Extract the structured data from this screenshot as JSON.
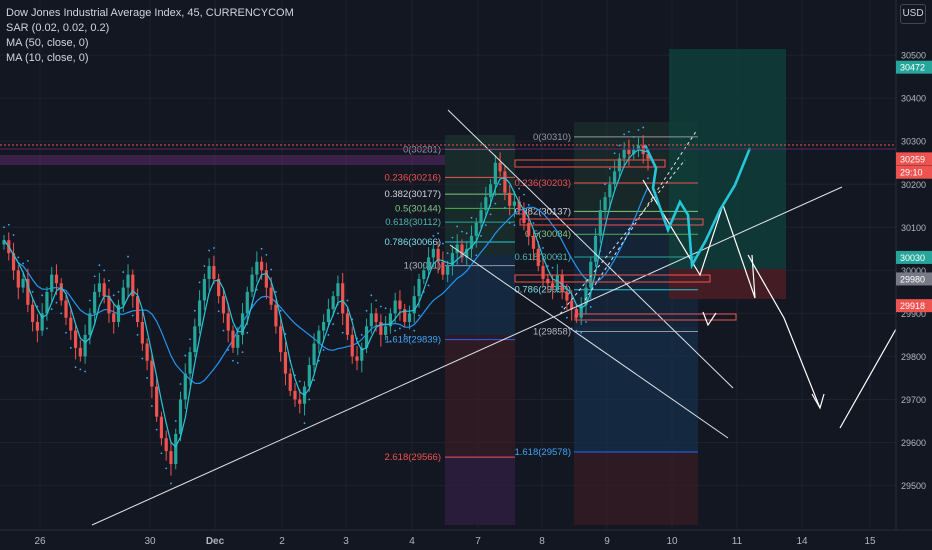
{
  "legend": {
    "title": "Dow Jones Industrial Average Index, 45, CURRENCYCOM",
    "sar": "SAR (0.02, 0.02, 0.2)",
    "ma50": "MA (50, close, 0)",
    "ma10": "MA (10, close, 0)"
  },
  "currency": "USD",
  "colors": {
    "background": "#131722",
    "up": "#26a69a",
    "down": "#ef5350",
    "ma50": "#2196f3",
    "ma10": "#26c6da",
    "sar": "#42a5f5",
    "drawing": "#e0e3eb",
    "forecast": "#26c6da"
  },
  "chart_data": {
    "type": "candlestick",
    "title": "Dow Jones Industrial Average Index, 45, CURRENCYCOM",
    "ylim": [
      29420,
      30570
    ],
    "y_ticks": [
      29500,
      29600,
      29700,
      29800,
      29900,
      30000,
      30100,
      30200,
      30300,
      30400,
      30500
    ],
    "x_ticks": [
      "26",
      "30",
      "Dec",
      "2",
      "3",
      "4",
      "7",
      "8",
      "9",
      "10",
      "11",
      "14",
      "15"
    ],
    "price_labels": [
      {
        "value": 30472,
        "text": "30472",
        "color": "#26a69a"
      },
      {
        "value": 30259,
        "text": "30259",
        "color": "#ef5350"
      },
      {
        "value": 30228,
        "text": "29:10",
        "color": "#ef5350"
      },
      {
        "value": 30030,
        "text": "30030",
        "color": "#26a69a"
      },
      {
        "value": 29980,
        "text": "29980",
        "color": "#787b86"
      },
      {
        "value": 29918,
        "text": "29918",
        "color": "#ef5350"
      }
    ],
    "closes": [
      30070,
      30040,
      30000,
      29960,
      29980,
      29920,
      29880,
      29860,
      29900,
      29950,
      29990,
      29970,
      29930,
      29890,
      29860,
      29820,
      29800,
      29850,
      29900,
      29950,
      29970,
      29940,
      29900,
      29880,
      29920,
      29960,
      29990,
      29940,
      29880,
      29830,
      29790,
      29730,
      29660,
      29610,
      29580,
      29550,
      29620,
      29700,
      29760,
      29810,
      29870,
      29930,
      29980,
      30010,
      29980,
      29940,
      29900,
      29860,
      29820,
      29850,
      29900,
      29950,
      29990,
      30020,
      30000,
      29960,
      29920,
      29870,
      29810,
      29760,
      29720,
      29700,
      29690,
      29730,
      29780,
      29830,
      29860,
      29880,
      29910,
      29940,
      29970,
      29900,
      29850,
      29800,
      29790,
      29820,
      29870,
      29900,
      29880,
      29850,
      29870,
      29900,
      29930,
      29910,
      29880,
      29900,
      29940,
      29980,
      30000,
      30030,
      30050,
      30020,
      29990,
      30010,
      30040,
      30060,
      30030,
      30050,
      30080,
      30110,
      30140,
      30170,
      30200,
      30250,
      30230,
      30180,
      30150,
      30160,
      30140,
      30110,
      30080,
      30050,
      30010,
      29980,
      29970,
      29960,
      29990,
      29950,
      29930,
      29910,
      29890,
      29920,
      29960,
      30020,
      30080,
      30140,
      30170,
      30200,
      30230,
      30260,
      30280,
      30270,
      30280,
      30290,
      30270,
      30259
    ],
    "fibonacci_retracements": [
      {
        "level": "0",
        "price": 30281,
        "text": "0(30281)"
      },
      {
        "level": "0.236",
        "price": 30216,
        "text": "0.236(30216)"
      },
      {
        "level": "0.382",
        "price": 30177,
        "text": "0.382(30177)"
      },
      {
        "level": "0.5",
        "price": 30144,
        "text": "0.5(30144)"
      },
      {
        "level": "0.618",
        "price": 30112,
        "text": "0.618(30112)"
      },
      {
        "level": "0.786",
        "price": 30066,
        "text": "0.786(30066)"
      },
      {
        "level": "1",
        "price": 30011,
        "text": "1(30011)"
      },
      {
        "level": "1.618",
        "price": 29839,
        "text": "1.618(29839)"
      },
      {
        "level": "2.618",
        "price": 29566,
        "text": "2.618(29566)"
      }
    ],
    "fibonacci_retracements_2": [
      {
        "level": "0",
        "price": 30310,
        "text": "0(30310)"
      },
      {
        "level": "0.236",
        "price": 30203,
        "text": "0.236(30203)"
      },
      {
        "level": "0.382",
        "price": 30137,
        "text": "0.382(30137)"
      },
      {
        "level": "0.5",
        "price": 30084,
        "text": "0.5(30084)"
      },
      {
        "level": "0.618",
        "price": 30031,
        "text": "0.618(30031)"
      },
      {
        "level": "0.786",
        "price": 29955,
        "text": "0.786(29955)"
      },
      {
        "level": "1",
        "price": 29858,
        "text": "1(29858)"
      },
      {
        "level": "1.618",
        "price": 29578,
        "text": "1.618(29578)"
      }
    ]
  }
}
